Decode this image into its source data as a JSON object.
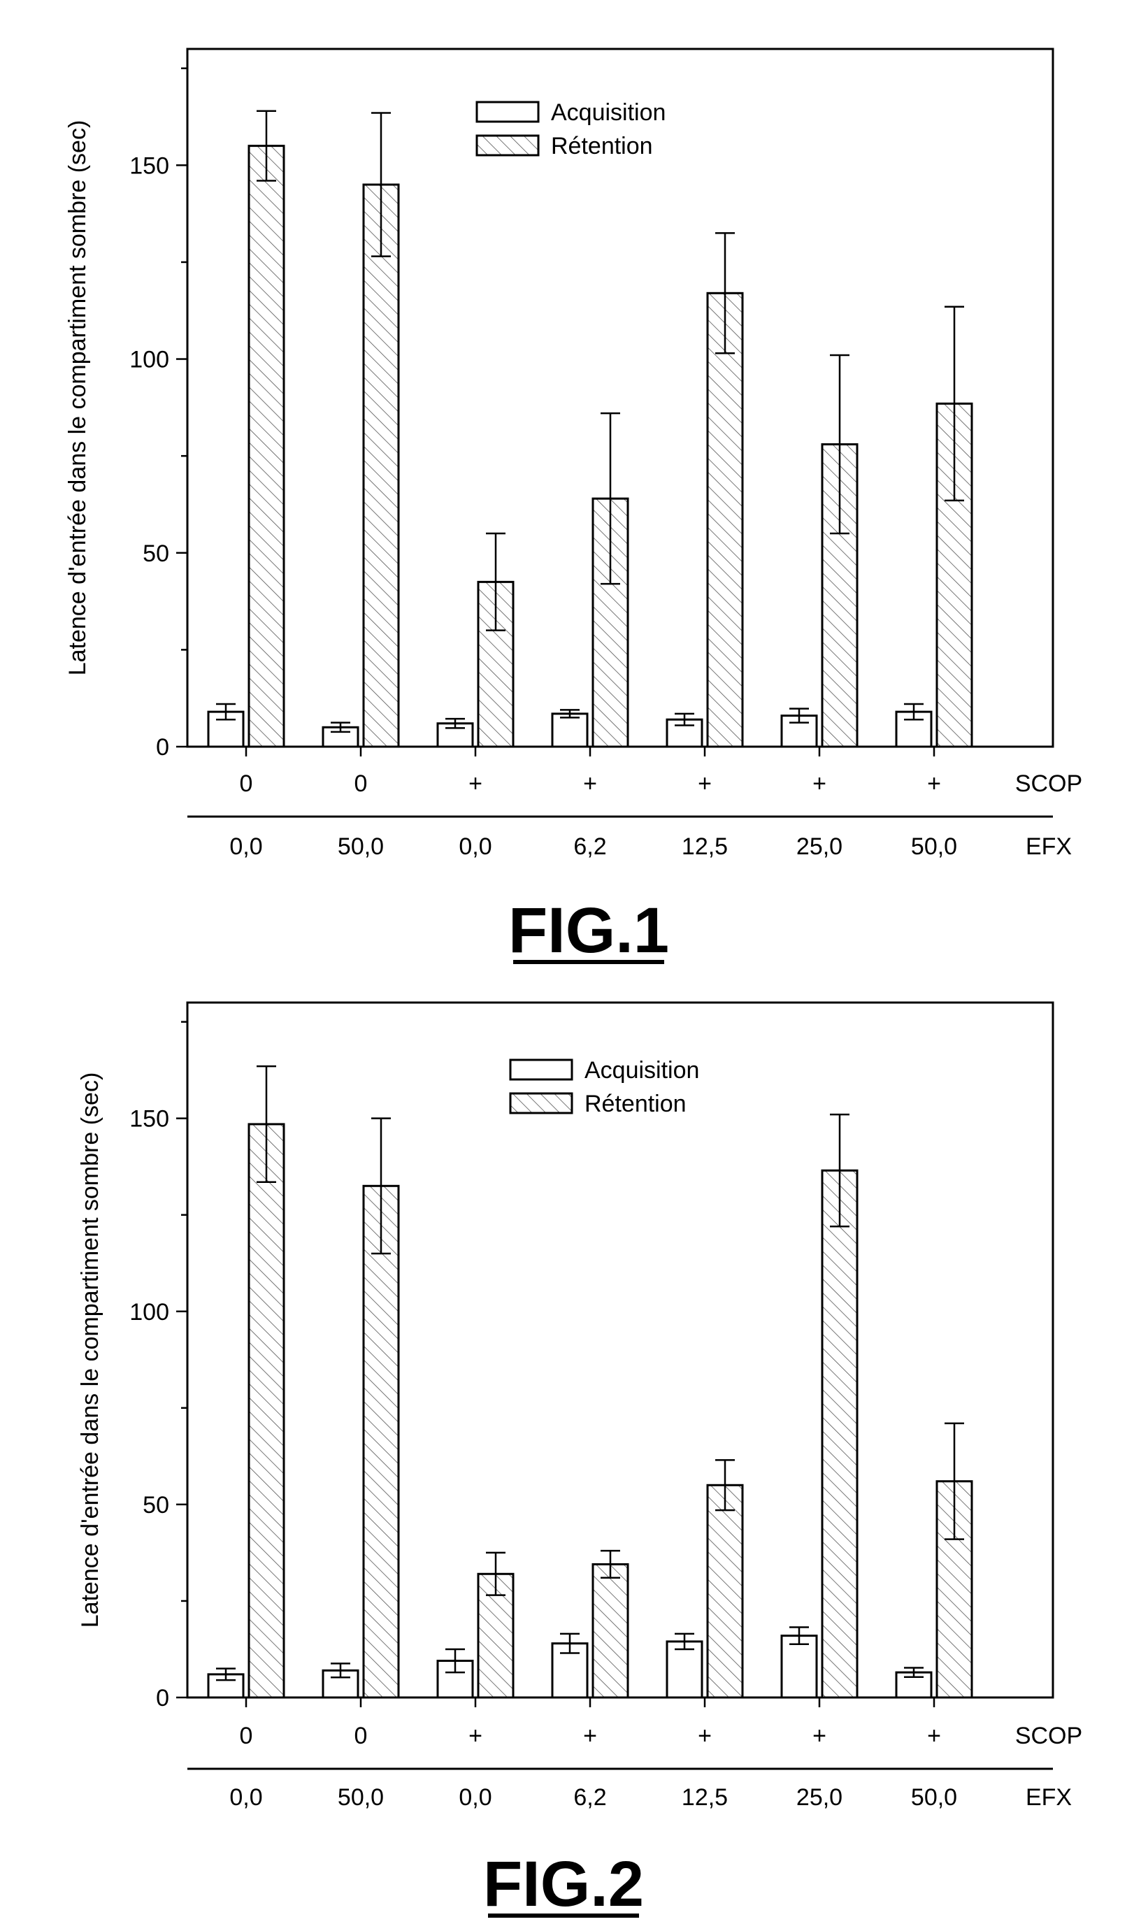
{
  "chart_data": [
    {
      "type": "bar",
      "figure_label": "FIG.1",
      "ylabel": "Latence d'entrée dans le compartiment sombre (sec)",
      "xlabel": "",
      "ylim": [
        0,
        180
      ],
      "yticks": [
        0,
        50,
        100,
        150
      ],
      "legend_position": "top-center",
      "row_labels": [
        "SCOP",
        "EFX"
      ],
      "categories_scop": [
        "0",
        "0",
        "+",
        "+",
        "+",
        "+",
        "+"
      ],
      "categories_efx": [
        "0,0",
        "50,0",
        "0,0",
        "6,2",
        "12,5",
        "25,0",
        "50,0"
      ],
      "series": [
        {
          "name": "Acquisition",
          "pattern": "open",
          "values": [
            9,
            5,
            6,
            8.5,
            7,
            8,
            9
          ],
          "errors": [
            2,
            1.2,
            1.2,
            1,
            1.5,
            1.8,
            2
          ]
        },
        {
          "name": "Rétention",
          "pattern": "hatched",
          "values": [
            155,
            145,
            42.5,
            64,
            117,
            78,
            88.5
          ],
          "errors": [
            9,
            18.5,
            12.5,
            22,
            15.5,
            23,
            25
          ]
        }
      ]
    },
    {
      "type": "bar",
      "figure_label": "FIG.2",
      "ylabel": "Latence d'entrée dans le compartiment sombre (sec)",
      "xlabel": "",
      "ylim": [
        0,
        180
      ],
      "yticks": [
        0,
        50,
        100,
        150
      ],
      "legend_position": "top-center",
      "row_labels": [
        "SCOP",
        "EFX"
      ],
      "categories_scop": [
        "0",
        "0",
        "+",
        "+",
        "+",
        "+",
        "+"
      ],
      "categories_efx": [
        "0,0",
        "50,0",
        "0,0",
        "6,2",
        "12,5",
        "25,0",
        "50,0"
      ],
      "series": [
        {
          "name": "Acquisition",
          "pattern": "open",
          "values": [
            6,
            7,
            9.5,
            14,
            14.5,
            16,
            6.5
          ],
          "errors": [
            1.5,
            1.8,
            3,
            2.5,
            2,
            2.2,
            1.2
          ]
        },
        {
          "name": "Rétention",
          "pattern": "hatched",
          "values": [
            148.5,
            132.5,
            32,
            34.5,
            55,
            136.5,
            56
          ],
          "errors": [
            15,
            17.5,
            5.5,
            3.5,
            6.5,
            14.5,
            15
          ]
        }
      ]
    }
  ]
}
